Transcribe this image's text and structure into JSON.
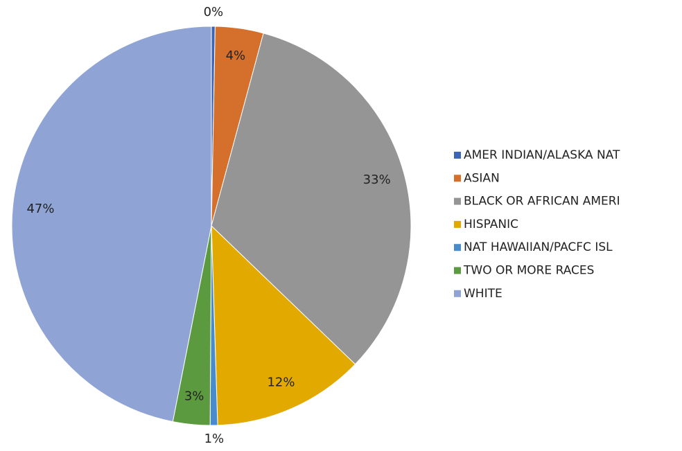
{
  "chart_data": {
    "type": "pie",
    "categories": [
      "AMER INDIAN/ALASKA NAT",
      "ASIAN",
      "BLACK OR AFRICAN AMERI",
      "HISPANIC",
      "NAT HAWAIIAN/PACFC ISL",
      "TWO OR MORE RACES",
      "WHITE"
    ],
    "values": [
      0.3,
      3.9,
      33,
      12.3,
      0.6,
      3,
      46.9
    ],
    "value_labels": [
      "0%",
      "4%",
      "33%",
      "12%",
      "1%",
      "3%",
      "47%"
    ],
    "colors": [
      "#3d65b5",
      "#d4702c",
      "#959595",
      "#e2aa00",
      "#4a8ccb",
      "#5c9a3f",
      "#8fa4d4"
    ],
    "legend": "right"
  }
}
